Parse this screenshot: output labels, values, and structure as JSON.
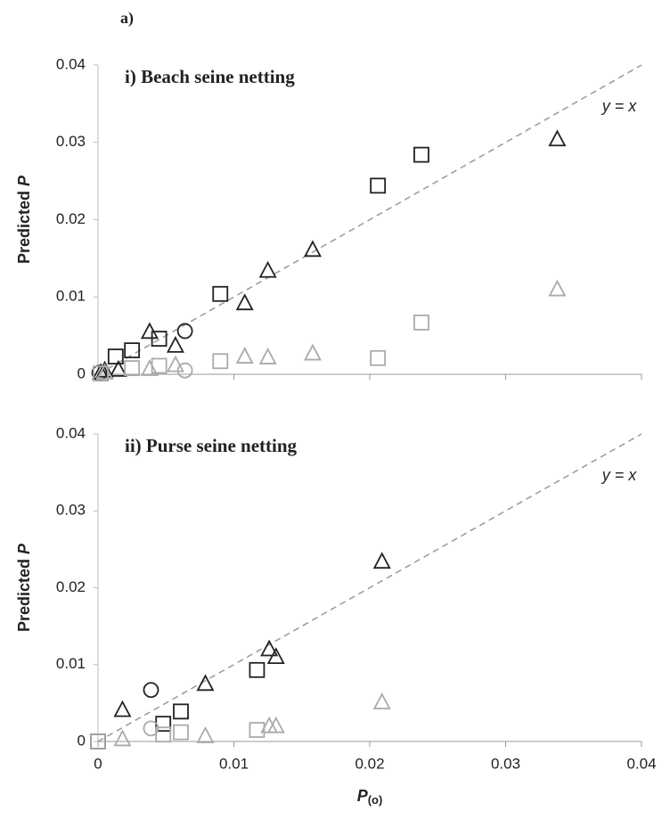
{
  "figure_label": "a)",
  "chart_data": [
    {
      "type": "scatter",
      "title": "i) Beach seine netting",
      "ylabel": "Predicted",
      "ylabel_symbol": "P",
      "xlim": [
        0,
        0.04
      ],
      "ylim": [
        0,
        0.04
      ],
      "xticks": [
        0,
        0.01,
        0.02,
        0.03,
        0.04
      ],
      "yticks": [
        0,
        0.01,
        0.02,
        0.03,
        0.04
      ],
      "xticklabels": false,
      "reference_line": {
        "label": "y = x",
        "color": "#999999"
      },
      "series": [
        {
          "marker": "square",
          "color": "#222222",
          "x": [
            0.0013,
            0.0025,
            0.0045,
            0.009,
            0.0206,
            0.0238
          ],
          "values": [
            0.0023,
            0.0031,
            0.0046,
            0.0104,
            0.0244,
            0.0284
          ]
        },
        {
          "marker": "triangle",
          "color": "#222222",
          "x": [
            0.0002,
            0.0005,
            0.0015,
            0.0038,
            0.0057,
            0.0108,
            0.0125,
            0.0158,
            0.0338
          ],
          "values": [
            0.0002,
            0.0005,
            0.0006,
            0.0055,
            0.0037,
            0.0092,
            0.0134,
            0.0161,
            0.0304
          ]
        },
        {
          "marker": "circle",
          "color": "#222222",
          "x": [
            0.0001,
            0.0064
          ],
          "values": [
            0.0002,
            0.0056
          ]
        },
        {
          "marker": "square",
          "color": "#aaaaaa",
          "x": [
            0.0002,
            0.0025,
            0.0045,
            0.009,
            0.0206,
            0.0238
          ],
          "values": [
            0.0001,
            0.0008,
            0.0011,
            0.0017,
            0.0021,
            0.0067
          ]
        },
        {
          "marker": "triangle",
          "color": "#aaaaaa",
          "x": [
            0.0005,
            0.0038,
            0.0057,
            0.0108,
            0.0125,
            0.0158,
            0.0338
          ],
          "values": [
            0.0002,
            0.0007,
            0.0012,
            0.0023,
            0.0022,
            0.0027,
            0.011
          ]
        },
        {
          "marker": "circle",
          "color": "#aaaaaa",
          "x": [
            0.0064
          ],
          "values": [
            0.0005
          ]
        }
      ]
    },
    {
      "type": "scatter",
      "title": "ii) Purse seine netting",
      "ylabel": "Predicted",
      "ylabel_symbol": "P",
      "xlabel": "P",
      "xlabel_subscript": "(o)",
      "xlim": [
        0,
        0.04
      ],
      "ylim": [
        0,
        0.04
      ],
      "xticks": [
        0,
        0.01,
        0.02,
        0.03,
        0.04
      ],
      "yticks": [
        0,
        0.01,
        0.02,
        0.03,
        0.04
      ],
      "xticklabels": true,
      "reference_line": {
        "label": "y = x",
        "color": "#999999"
      },
      "series": [
        {
          "marker": "square",
          "color": "#222222",
          "x": [
            0,
            0.0048,
            0.0061,
            0.0117
          ],
          "values": [
            0,
            0.0023,
            0.0039,
            0.0093
          ]
        },
        {
          "marker": "triangle",
          "color": "#222222",
          "x": [
            0.0018,
            0.0079,
            0.0126,
            0.0131,
            0.0209
          ],
          "values": [
            0.0041,
            0.0075,
            0.012,
            0.011,
            0.0234
          ]
        },
        {
          "marker": "circle",
          "color": "#222222",
          "x": [
            0.0039
          ],
          "values": [
            0.0067
          ]
        },
        {
          "marker": "square",
          "color": "#aaaaaa",
          "x": [
            0,
            0.0048,
            0.0061,
            0.0117
          ],
          "values": [
            0,
            0.0009,
            0.0012,
            0.0015
          ]
        },
        {
          "marker": "triangle",
          "color": "#aaaaaa",
          "x": [
            0.0018,
            0.0079,
            0.0126,
            0.0131,
            0.0209
          ],
          "values": [
            0.0003,
            0.0007,
            0.002,
            0.002,
            0.0051
          ]
        },
        {
          "marker": "circle",
          "color": "#aaaaaa",
          "x": [
            0.0039
          ],
          "values": [
            0.0017
          ]
        }
      ]
    }
  ]
}
